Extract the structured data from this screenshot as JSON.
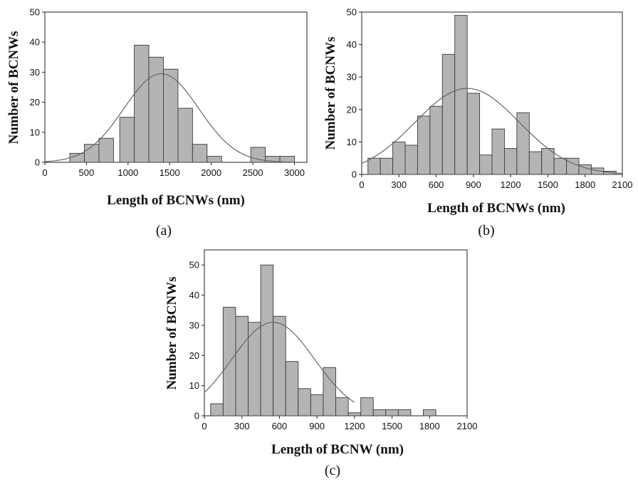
{
  "chart_data": [
    {
      "type": "bar",
      "caption": "(a)",
      "xlabel": "Length of BCNWs (nm)",
      "ylabel": "Number of BCNWs",
      "xlim": [
        0,
        3150
      ],
      "ylim": [
        0,
        50
      ],
      "xticks": [
        0,
        500,
        1000,
        1500,
        2000,
        2500,
        3000
      ],
      "yticks": [
        0,
        10,
        20,
        30,
        40,
        50
      ],
      "bin_width": 175,
      "bins": [
        {
          "x": 300,
          "value": 3
        },
        {
          "x": 475,
          "value": 6
        },
        {
          "x": 650,
          "value": 8
        },
        {
          "x": 900,
          "value": 15
        },
        {
          "x": 1075,
          "value": 39
        },
        {
          "x": 1250,
          "value": 35
        },
        {
          "x": 1425,
          "value": 31
        },
        {
          "x": 1600,
          "value": 18
        },
        {
          "x": 1775,
          "value": 6
        },
        {
          "x": 1950,
          "value": 2
        },
        {
          "x": 2125,
          "value": 0
        },
        {
          "x": 2300,
          "value": 0
        },
        {
          "x": 2475,
          "value": 5
        },
        {
          "x": 2650,
          "value": 2
        },
        {
          "x": 2825,
          "value": 2
        }
      ],
      "fit": {
        "type": "gaussian",
        "mean": 1400,
        "sigma": 450,
        "amplitude": 29.5,
        "x_range": [
          0,
          3000
        ]
      }
    },
    {
      "type": "bar",
      "caption": "(b)",
      "xlabel": "Length of BCNWs (nm)",
      "ylabel": "Number of BCNWs",
      "xlim": [
        0,
        2100
      ],
      "ylim": [
        0,
        50
      ],
      "xticks": [
        0,
        300,
        600,
        900,
        1200,
        1500,
        1800,
        2100
      ],
      "yticks": [
        0,
        10,
        20,
        30,
        40,
        50
      ],
      "bin_width": 100,
      "bins": [
        {
          "x": 50,
          "value": 5
        },
        {
          "x": 150,
          "value": 5
        },
        {
          "x": 250,
          "value": 10
        },
        {
          "x": 350,
          "value": 9
        },
        {
          "x": 450,
          "value": 18
        },
        {
          "x": 550,
          "value": 21
        },
        {
          "x": 650,
          "value": 37
        },
        {
          "x": 750,
          "value": 49
        },
        {
          "x": 850,
          "value": 25
        },
        {
          "x": 950,
          "value": 6
        },
        {
          "x": 1050,
          "value": 14
        },
        {
          "x": 1150,
          "value": 8
        },
        {
          "x": 1250,
          "value": 19
        },
        {
          "x": 1350,
          "value": 7
        },
        {
          "x": 1450,
          "value": 8
        },
        {
          "x": 1550,
          "value": 5
        },
        {
          "x": 1650,
          "value": 5
        },
        {
          "x": 1750,
          "value": 3
        },
        {
          "x": 1850,
          "value": 2
        },
        {
          "x": 1950,
          "value": 1
        }
      ],
      "fit": {
        "type": "gaussian",
        "mean": 850,
        "sigma": 420,
        "amplitude": 26.5,
        "x_range": [
          0,
          2100
        ]
      }
    },
    {
      "type": "bar",
      "caption": "(c)",
      "xlabel": "Length of BCNW (nm)",
      "ylabel": "Number of BCNWs",
      "xlim": [
        0,
        2100
      ],
      "ylim": [
        0,
        55
      ],
      "xticks": [
        0,
        300,
        600,
        900,
        1200,
        1500,
        1800,
        2100
      ],
      "yticks": [
        0,
        10,
        20,
        30,
        40,
        50
      ],
      "bin_width": 100,
      "bins": [
        {
          "x": 50,
          "value": 4
        },
        {
          "x": 150,
          "value": 36
        },
        {
          "x": 250,
          "value": 33
        },
        {
          "x": 350,
          "value": 31
        },
        {
          "x": 450,
          "value": 50
        },
        {
          "x": 550,
          "value": 33
        },
        {
          "x": 650,
          "value": 18
        },
        {
          "x": 750,
          "value": 9
        },
        {
          "x": 850,
          "value": 7
        },
        {
          "x": 950,
          "value": 16
        },
        {
          "x": 1050,
          "value": 6
        },
        {
          "x": 1150,
          "value": 1
        },
        {
          "x": 1250,
          "value": 6
        },
        {
          "x": 1350,
          "value": 2
        },
        {
          "x": 1450,
          "value": 2
        },
        {
          "x": 1550,
          "value": 2
        },
        {
          "x": 1650,
          "value": 0
        },
        {
          "x": 1750,
          "value": 2
        }
      ],
      "fit": {
        "type": "gaussian",
        "mean": 550,
        "sigma": 330,
        "amplitude": 31,
        "x_range": [
          0,
          1200
        ]
      }
    }
  ],
  "colors": {
    "bar_fill": "#b4b4b4",
    "bar_stroke": "#3a3a3a",
    "fit_line": "#666666",
    "frame": "#222222"
  }
}
